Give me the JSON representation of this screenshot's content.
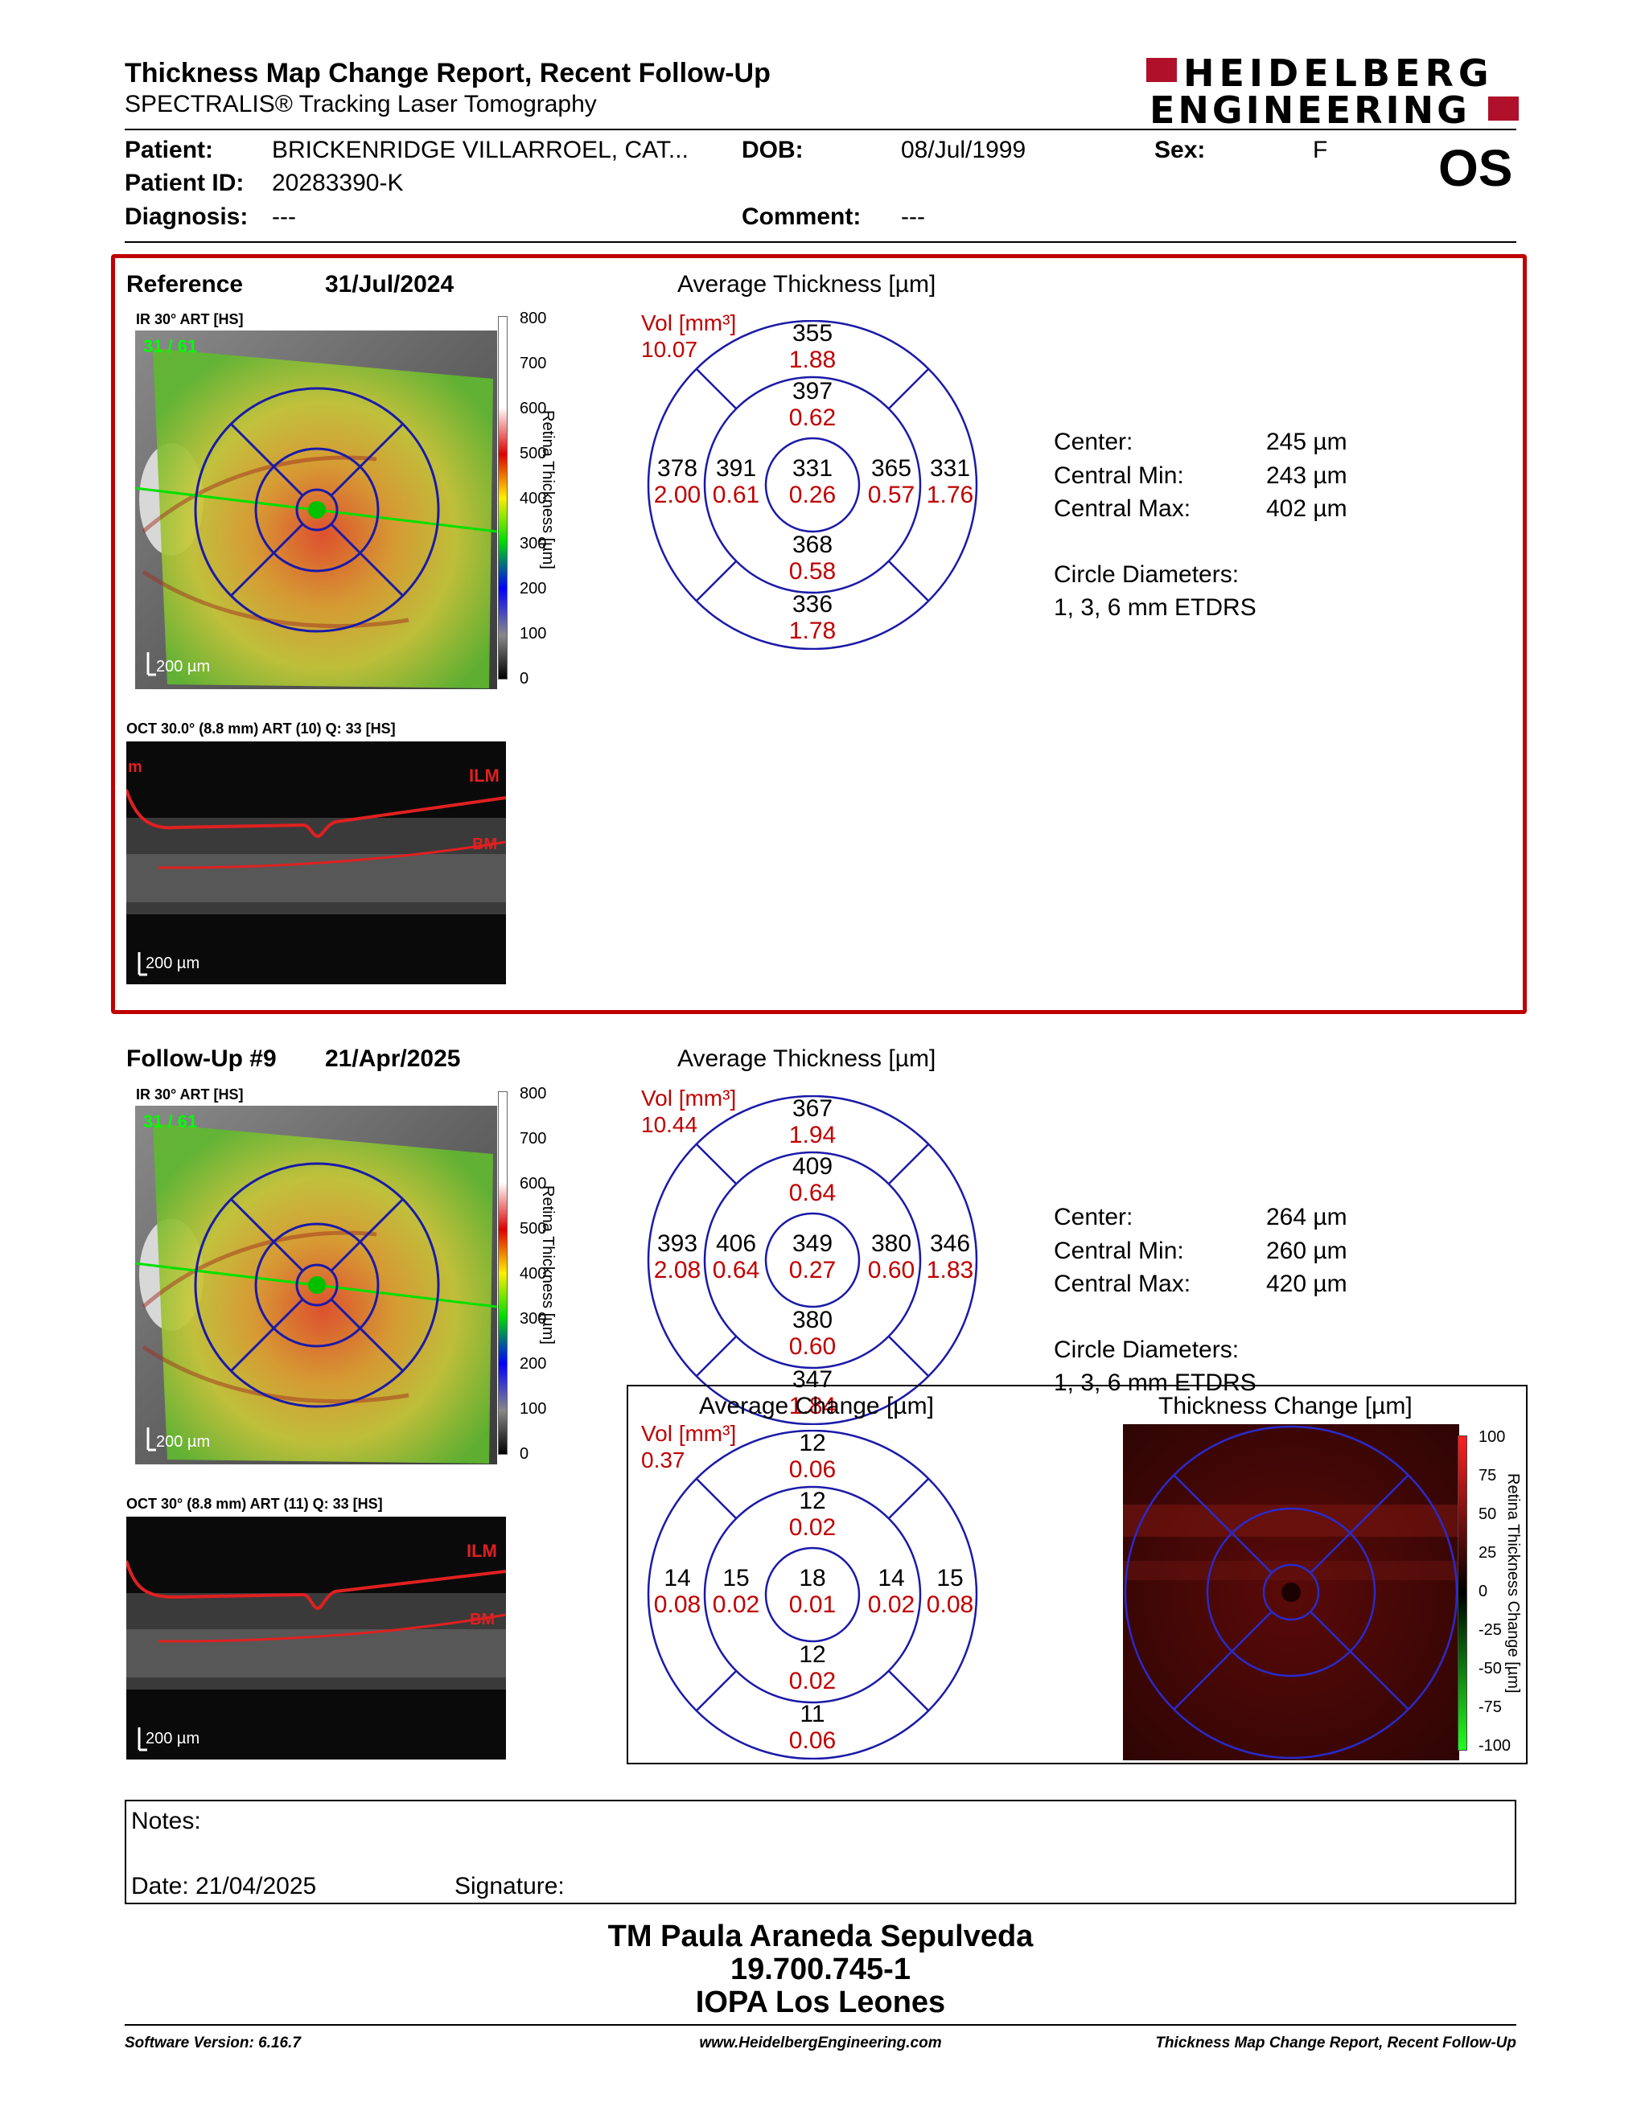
{
  "header": {
    "title": "Thickness Map Change Report, Recent Follow-Up",
    "subtitle": "SPECTRALIS® Tracking Laser Tomography",
    "logo_line1": "HEIDELBERG",
    "logo_line2": "ENGINEERING",
    "eye": "OS"
  },
  "patient": {
    "patient_label": "Patient:",
    "patient_value": "BRICKENRIDGE VILLARROEL, CAT...",
    "dob_label": "DOB:",
    "dob_value": "08/Jul/1999",
    "sex_label": "Sex:",
    "sex_value": "F",
    "id_label": "Patient ID:",
    "id_value": "20283390-K",
    "diagnosis_label": "Diagnosis:",
    "diagnosis_value": "---",
    "comment_label": "Comment:",
    "comment_value": "---"
  },
  "reference": {
    "label": "Reference",
    "date": "31/Jul/2024",
    "ir_label": "IR 30° ART [HS]",
    "ir_overlay": "31 / 61",
    "ir_scale": "200 µm",
    "oct_label": "OCT 30.0° (8.8 mm) ART (10) Q: 33 [HS]",
    "oct_scale": "200 µm",
    "oct_m": "m",
    "ilm": "ILM",
    "bm": "BM",
    "avg_title": "Average Thickness [µm]",
    "vol_label": "Vol [mm³]",
    "vol_total": "10.07",
    "etdrs": {
      "outer_sup": [
        "355",
        "1.88"
      ],
      "inner_sup": [
        "397",
        "0.62"
      ],
      "outer_temp": [
        "378",
        "2.00"
      ],
      "inner_temp": [
        "391",
        "0.61"
      ],
      "center": [
        "331",
        "0.26"
      ],
      "inner_nasal": [
        "365",
        "0.57"
      ],
      "outer_nasal": [
        "331",
        "1.76"
      ],
      "inner_inf": [
        "368",
        "0.58"
      ],
      "outer_inf": [
        "336",
        "1.78"
      ]
    },
    "stats": {
      "center_label": "Center:",
      "center_value": "245 µm",
      "min_label": "Central Min:",
      "min_value": "243 µm",
      "max_label": "Central Max:",
      "max_value": "402 µm",
      "circle_label": "Circle Diameters:",
      "circle_value": "1, 3, 6 mm ETDRS"
    }
  },
  "followup": {
    "label": "Follow-Up #9",
    "date": "21/Apr/2025",
    "ir_label": "IR 30° ART [HS]",
    "ir_overlay": "31 / 61",
    "ir_scale": "200 µm",
    "oct_label": "OCT 30° (8.8 mm) ART (11) Q: 33 [HS]",
    "oct_scale": "200 µm",
    "ilm": "ILM",
    "bm": "BM",
    "avg_title": "Average Thickness [µm]",
    "vol_label": "Vol [mm³]",
    "vol_total": "10.44",
    "etdrs": {
      "outer_sup": [
        "367",
        "1.94"
      ],
      "inner_sup": [
        "409",
        "0.64"
      ],
      "outer_temp": [
        "393",
        "2.08"
      ],
      "inner_temp": [
        "406",
        "0.64"
      ],
      "center": [
        "349",
        "0.27"
      ],
      "inner_nasal": [
        "380",
        "0.60"
      ],
      "outer_nasal": [
        "346",
        "1.83"
      ],
      "inner_inf": [
        "380",
        "0.60"
      ],
      "outer_inf": [
        "347",
        "1.84"
      ]
    },
    "stats": {
      "center_label": "Center:",
      "center_value": "264 µm",
      "min_label": "Central Min:",
      "min_value": "260 µm",
      "max_label": "Central Max:",
      "max_value": "420 µm",
      "circle_label": "Circle Diameters:",
      "circle_value": "1, 3, 6 mm ETDRS"
    }
  },
  "change": {
    "avg_title": "Average Change [µm]",
    "map_title": "Thickness Change [µm]",
    "vol_label": "Vol [mm³]",
    "vol_total": "0.37",
    "etdrs": {
      "outer_sup": [
        "12",
        "0.06"
      ],
      "inner_sup": [
        "12",
        "0.02"
      ],
      "outer_temp": [
        "14",
        "0.08"
      ],
      "inner_temp": [
        "15",
        "0.02"
      ],
      "center": [
        "18",
        "0.01"
      ],
      "inner_nasal": [
        "14",
        "0.02"
      ],
      "outer_nasal": [
        "15",
        "0.08"
      ],
      "inner_inf": [
        "12",
        "0.02"
      ],
      "outer_inf": [
        "11",
        "0.06"
      ]
    },
    "scale_ticks": [
      "100",
      "75",
      "50",
      "25",
      "0",
      "-25",
      "-50",
      "-75",
      "-100"
    ],
    "scale_label": "Retina Thickness Change [µm]"
  },
  "thickness_scale": {
    "ticks": [
      "800",
      "700",
      "600",
      "500",
      "400",
      "300",
      "200",
      "100",
      "0"
    ],
    "label": "Retina Thickness [µm]"
  },
  "notes": {
    "notes_label": "Notes:",
    "date_label": "Date: 21/04/2025",
    "signature_label": "Signature:"
  },
  "signer": {
    "line1": "TM Paula Araneda Sepulveda",
    "line2": "19.700.745-1",
    "line3": "IOPA Los Leones"
  },
  "footer": {
    "left": "Software Version: 6.16.7",
    "center": "www.HeidelbergEngineering.com",
    "right": "Thickness Map Change Report, Recent Follow-Up"
  },
  "colors": {
    "frame_red": "#c00000",
    "grid_blue": "#1a1aa8",
    "value_red": "#d40000"
  }
}
